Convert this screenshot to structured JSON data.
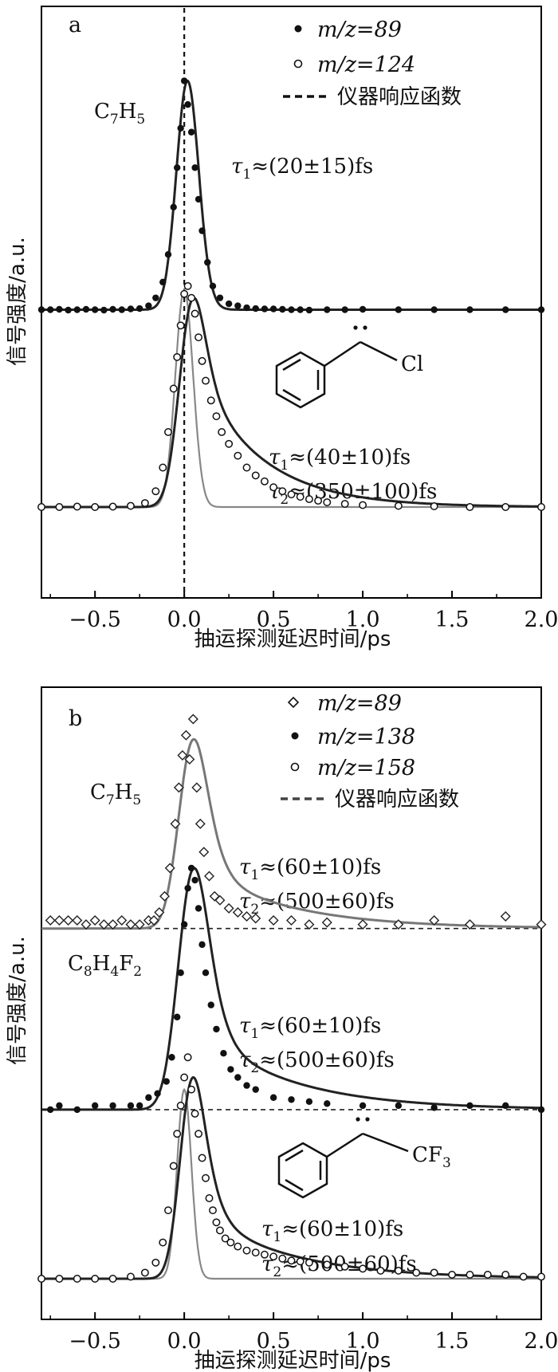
{
  "chart_data": [
    {
      "type": "line",
      "panel_label": "a",
      "xlabel": "抽运探测延迟时间/ps",
      "ylabel": "信号强度/a.u.",
      "xlim": [
        -0.8,
        2.0
      ],
      "xticks": [
        "−0.5",
        "0.0",
        "0.5",
        "1.0",
        "1.5",
        "2.0"
      ],
      "xtick_values": [
        -0.5,
        0.0,
        0.5,
        1.0,
        1.5,
        2.0
      ],
      "ylim": [
        0,
        1.3
      ],
      "grid": false,
      "legend_position": "top-right",
      "legend": [
        {
          "label": "m/z=89",
          "marker": "filled-circle"
        },
        {
          "label": "m/z=124",
          "marker": "open-circle"
        },
        {
          "label": "仪器响应函数",
          "marker": "dashed-line"
        }
      ],
      "series": [
        {
          "name": "m/z=89",
          "marker": "filled-circle",
          "offset": 0.5,
          "amp": 0.58,
          "tau1": 0.02,
          "tau2": 0.0,
          "sigma": 0.06,
          "frac2": 0.0,
          "x": [
            -0.8,
            -0.75,
            -0.7,
            -0.65,
            -0.6,
            -0.55,
            -0.5,
            -0.45,
            -0.4,
            -0.35,
            -0.3,
            -0.25,
            -0.2,
            -0.16,
            -0.12,
            -0.09,
            -0.06,
            -0.04,
            -0.02,
            0.0,
            0.02,
            0.04,
            0.06,
            0.08,
            0.1,
            0.13,
            0.16,
            0.2,
            0.25,
            0.3,
            0.35,
            0.4,
            0.45,
            0.5,
            0.55,
            0.6,
            0.65,
            0.7,
            0.8,
            0.9,
            1.0,
            1.2,
            1.4,
            1.6,
            1.8,
            2.0
          ],
          "y": [
            0.5,
            0.5,
            0.501,
            0.499,
            0.5,
            0.501,
            0.5,
            0.499,
            0.501,
            0.5,
            0.502,
            0.503,
            0.51,
            0.53,
            0.57,
            0.64,
            0.76,
            0.86,
            0.96,
            1.08,
            1.02,
            0.95,
            0.86,
            0.78,
            0.7,
            0.62,
            0.56,
            0.53,
            0.515,
            0.51,
            0.505,
            0.503,
            0.502,
            0.502,
            0.501,
            0.5,
            0.5,
            0.499,
            0.5,
            0.5,
            0.501,
            0.5,
            0.5,
            0.5,
            0.5,
            0.5
          ]
        },
        {
          "name": "m/z=124",
          "marker": "open-circle",
          "offset": 0.0,
          "amp": 0.53,
          "tau1": 0.04,
          "tau2": 0.35,
          "sigma": 0.065,
          "frac2": 0.25,
          "x": [
            -0.8,
            -0.7,
            -0.6,
            -0.5,
            -0.4,
            -0.3,
            -0.22,
            -0.16,
            -0.12,
            -0.09,
            -0.06,
            -0.04,
            -0.02,
            0.0,
            0.02,
            0.04,
            0.06,
            0.08,
            0.1,
            0.12,
            0.15,
            0.18,
            0.21,
            0.25,
            0.3,
            0.35,
            0.4,
            0.45,
            0.5,
            0.55,
            0.6,
            0.65,
            0.7,
            0.75,
            0.8,
            0.9,
            1.0,
            1.2,
            1.4,
            1.6,
            1.8,
            2.0
          ],
          "y": [
            0.0,
            0.0,
            0.001,
            0.0,
            0.001,
            0.003,
            0.01,
            0.04,
            0.1,
            0.19,
            0.3,
            0.38,
            0.46,
            0.54,
            0.56,
            0.53,
            0.49,
            0.43,
            0.37,
            0.32,
            0.27,
            0.23,
            0.19,
            0.16,
            0.13,
            0.1,
            0.08,
            0.065,
            0.05,
            0.04,
            0.032,
            0.026,
            0.02,
            0.016,
            0.012,
            0.008,
            0.005,
            0.003,
            0.002,
            0.0,
            0.0,
            0.0
          ]
        }
      ],
      "irf": {
        "center": 0.0,
        "sigma": 0.05,
        "amp": 0.55,
        "offset": 0.0
      },
      "annotations": [
        {
          "text": "C",
          "sub": "7",
          "text2": "H",
          "sub2": "5"
        },
        {
          "text": "τ",
          "sub": "1",
          "rest": "≈(20±15)fs"
        },
        {
          "text": "τ",
          "sub": "1",
          "rest": "≈(40±10)fs"
        },
        {
          "text": "τ",
          "sub": "2",
          "rest": "≈(350±100)fs"
        }
      ],
      "molecule_substituent": "Cl"
    },
    {
      "type": "line",
      "panel_label": "b",
      "xlabel": "抽运探测延迟时间/ps",
      "ylabel": "信号强度/a.u.",
      "xlim": [
        -0.8,
        2.0
      ],
      "xticks": [
        "−0.5",
        "0.0",
        "0.5",
        "1.0",
        "1.5",
        "2.0"
      ],
      "xtick_values": [
        -0.5,
        0.0,
        0.5,
        1.0,
        1.5,
        2.0
      ],
      "ylim": [
        0,
        1.45
      ],
      "grid": false,
      "legend_position": "top-right",
      "legend": [
        {
          "label": "m/z=89",
          "marker": "open-diamond"
        },
        {
          "label": "m/z=138",
          "marker": "filled-circle"
        },
        {
          "label": "m/z=158",
          "marker": "open-circle"
        },
        {
          "label": "仪器响应函数",
          "marker": "dashed-line"
        }
      ],
      "series": [
        {
          "name": "m/z=89",
          "marker": "open-diamond",
          "offset": 0.87,
          "amp": 0.47,
          "tau1": 0.06,
          "tau2": 0.5,
          "sigma": 0.07,
          "frac2": 0.12,
          "x": [
            -0.75,
            -0.7,
            -0.65,
            -0.6,
            -0.55,
            -0.5,
            -0.45,
            -0.4,
            -0.35,
            -0.3,
            -0.25,
            -0.2,
            -0.17,
            -0.14,
            -0.11,
            -0.08,
            -0.05,
            -0.03,
            -0.01,
            0.01,
            0.03,
            0.05,
            0.07,
            0.09,
            0.11,
            0.14,
            0.17,
            0.2,
            0.25,
            0.3,
            0.35,
            0.4,
            0.5,
            0.6,
            0.7,
            0.8,
            1.0,
            1.2,
            1.4,
            1.6,
            1.8,
            2.0
          ],
          "y": [
            0.89,
            0.89,
            0.89,
            0.89,
            0.88,
            0.89,
            0.88,
            0.88,
            0.89,
            0.88,
            0.88,
            0.89,
            0.89,
            0.91,
            0.95,
            1.02,
            1.13,
            1.22,
            1.3,
            1.35,
            1.29,
            1.39,
            1.22,
            1.13,
            1.06,
            1.0,
            0.95,
            0.94,
            0.92,
            0.91,
            0.9,
            0.895,
            0.89,
            0.89,
            0.88,
            0.885,
            0.88,
            0.88,
            0.89,
            0.88,
            0.9,
            0.88
          ]
        },
        {
          "name": "m/z=138",
          "marker": "filled-circle",
          "offset": 0.42,
          "amp": 0.6,
          "tau1": 0.06,
          "tau2": 0.5,
          "sigma": 0.075,
          "frac2": 0.12,
          "x": [
            -0.75,
            -0.7,
            -0.6,
            -0.5,
            -0.4,
            -0.3,
            -0.25,
            -0.2,
            -0.15,
            -0.1,
            -0.07,
            -0.04,
            -0.02,
            0.0,
            0.02,
            0.04,
            0.06,
            0.08,
            0.1,
            0.12,
            0.15,
            0.18,
            0.22,
            0.26,
            0.3,
            0.35,
            0.4,
            0.5,
            0.6,
            0.7,
            0.8,
            1.0,
            1.2,
            1.4,
            1.6,
            1.8,
            2.0
          ],
          "y": [
            0.42,
            0.43,
            0.42,
            0.43,
            0.43,
            0.43,
            0.43,
            0.45,
            0.46,
            0.49,
            0.55,
            0.65,
            0.76,
            0.88,
            0.97,
            1.02,
            0.99,
            0.92,
            0.83,
            0.76,
            0.68,
            0.62,
            0.56,
            0.52,
            0.5,
            0.48,
            0.47,
            0.45,
            0.445,
            0.44,
            0.435,
            0.43,
            0.43,
            0.425,
            0.43,
            0.43,
            0.42
          ]
        },
        {
          "name": "m/z=158",
          "marker": "open-circle",
          "offset": 0.0,
          "amp": 0.5,
          "tau1": 0.06,
          "tau2": 0.5,
          "sigma": 0.06,
          "frac2": 0.14,
          "x": [
            -0.8,
            -0.7,
            -0.6,
            -0.5,
            -0.4,
            -0.3,
            -0.22,
            -0.16,
            -0.12,
            -0.09,
            -0.06,
            -0.04,
            -0.02,
            0.0,
            0.02,
            0.04,
            0.06,
            0.08,
            0.1,
            0.12,
            0.14,
            0.16,
            0.18,
            0.2,
            0.23,
            0.26,
            0.3,
            0.35,
            0.4,
            0.45,
            0.5,
            0.55,
            0.6,
            0.65,
            0.7,
            0.8,
            0.9,
            1.0,
            1.1,
            1.2,
            1.3,
            1.4,
            1.5,
            1.6,
            1.7,
            1.8,
            1.9,
            2.0
          ],
          "y": [
            0.0,
            0.0,
            0.0,
            0.0,
            0.0,
            0.005,
            0.015,
            0.04,
            0.09,
            0.17,
            0.28,
            0.36,
            0.43,
            0.5,
            0.55,
            0.47,
            0.41,
            0.36,
            0.3,
            0.25,
            0.2,
            0.17,
            0.14,
            0.12,
            0.1,
            0.09,
            0.08,
            0.07,
            0.065,
            0.06,
            0.055,
            0.05,
            0.045,
            0.043,
            0.04,
            0.035,
            0.03,
            0.025,
            0.02,
            0.02,
            0.015,
            0.015,
            0.01,
            0.01,
            0.01,
            0.01,
            0.005,
            0.005
          ]
        }
      ],
      "irf": {
        "center": 0.0,
        "sigma": 0.04,
        "amp": 0.47,
        "offset": 0.0
      },
      "baselines": [
        0.87,
        0.42
      ],
      "annotations": [
        {
          "text": "C",
          "sub": "7",
          "text2": "H",
          "sub2": "5"
        },
        {
          "text": "C",
          "sub": "8",
          "text2": "H",
          "sub2": "4",
          "text3": "F",
          "sub3": "2"
        },
        {
          "text": "τ",
          "sub": "1",
          "rest": "≈(60±10)fs"
        },
        {
          "text": "τ",
          "sub": "2",
          "rest": "≈(500±60)fs"
        },
        {
          "text": "τ",
          "sub": "1",
          "rest": "≈(60±10)fs"
        },
        {
          "text": "τ",
          "sub": "2",
          "rest": "≈(500±60)fs"
        },
        {
          "text": "τ",
          "sub": "1",
          "rest": "≈(60±10)fs"
        },
        {
          "text": "τ",
          "sub": "2",
          "rest": "≈(500±60)fs"
        }
      ],
      "molecule_substituent": "CF",
      "molecule_substituent_sub": "3"
    }
  ]
}
